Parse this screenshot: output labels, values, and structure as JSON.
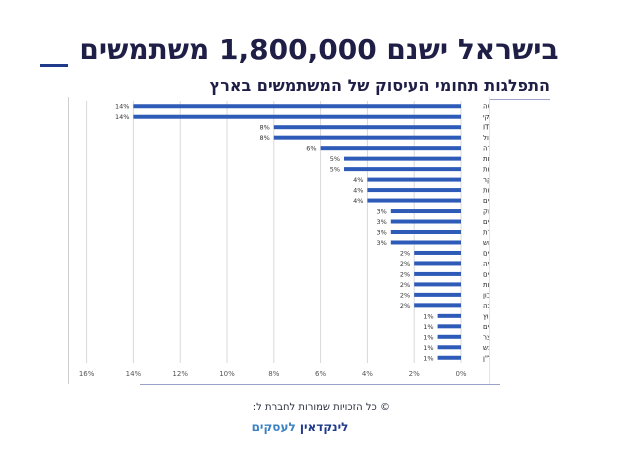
{
  "page": {
    "title": "בישראל ישנם 1,800,000 משתמשים",
    "subtitle": "התפלגות תחומי העיסוק של המשתמשים בארץ",
    "copyright": "© כל הזכויות שמורות לחברת ל:",
    "brand_main": "לינקדאין",
    "brand_accent": "לעסקים"
  },
  "colors": {
    "bar": "#2f5bb8",
    "grid": "#d9d9d9",
    "title": "#1e1e46"
  },
  "chart_data": {
    "type": "bar",
    "orientation": "horizontal",
    "x_direction": "right-to-left",
    "title": "",
    "xlabel": "",
    "ylabel": "",
    "xlim": [
      0,
      16
    ],
    "x_ticks": [
      "0%",
      "2%",
      "4%",
      "6%",
      "8%",
      "10%",
      "12%",
      "14%",
      "16%"
    ],
    "grid": true,
    "categories": [
      "הנדסה",
      "פיתוח עסקי",
      "אנשי IT",
      "תפעול",
      "הדרכה ולמידה",
      "מכירות",
      "עיצוב ואומנות",
      "מחקר",
      "שירותי בריאות",
      "מנהלי פרוייקטים",
      "שיווק",
      "פיננסים",
      "מדיה ותקשורת",
      "משאבי אנוש",
      "קהילה ושירותים חברתיים",
      "אדמיניסטרציה",
      "משפטים",
      "אבטחת איכות",
      "ראיית חשבון",
      "תמיכה",
      "יעוץ",
      "יזמים",
      "ניהול מוצר",
      "רכש",
      "נדל\"ן"
    ],
    "values": [
      14,
      14,
      8,
      8,
      6,
      5,
      5,
      4,
      4,
      4,
      3,
      3,
      3,
      3,
      2,
      2,
      2,
      2,
      2,
      2,
      1,
      1,
      1,
      1,
      1
    ],
    "value_labels": [
      "14%",
      "14%",
      "8%",
      "8%",
      "6%",
      "5%",
      "5%",
      "4%",
      "4%",
      "4%",
      "3%",
      "3%",
      "3%",
      "3%",
      "2%",
      "2%",
      "2%",
      "2%",
      "2%",
      "2%",
      "1%",
      "1%",
      "1%",
      "1%",
      "1%"
    ]
  }
}
